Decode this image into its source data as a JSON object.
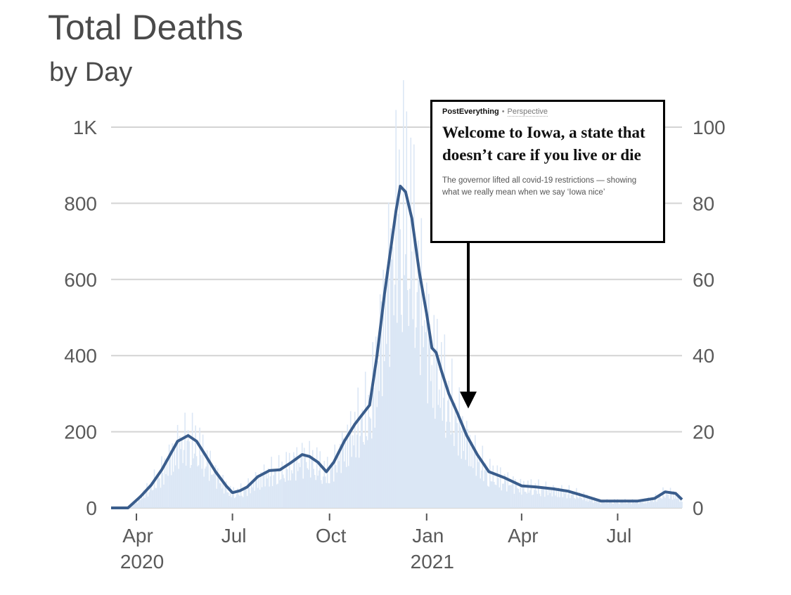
{
  "title": "Total Deaths",
  "subtitle": "by Day",
  "colors": {
    "line": "#3a5d8c",
    "bars": "#dbe7f5",
    "grid": "#d4d4d4",
    "text": "#5a5a5a"
  },
  "callout": {
    "section": "PostEverything",
    "separator": "•",
    "label": "Perspective",
    "headline": "Welcome to Iowa, a state that doesn’t care if you live or die",
    "dek": "The governor lifted all covid-19 restrictions — showing what we really mean when we say ‘Iowa nice’"
  },
  "chart_data": {
    "type": "bar",
    "title": "Total Deaths",
    "subtitle": "by Day",
    "x_domain": [
      "2020-03-08",
      "2021-08-31"
    ],
    "left_axis": {
      "ticks": [
        0,
        200,
        400,
        600,
        800,
        1000
      ],
      "tick_labels": [
        "0",
        "200",
        "400",
        "600",
        "800",
        "1K"
      ],
      "ylim": [
        0,
        1000
      ]
    },
    "right_axis": {
      "ticks": [
        0,
        20,
        40,
        60,
        80,
        100
      ],
      "tick_labels": [
        "0",
        "20",
        "40",
        "60",
        "80",
        "100"
      ],
      "ylim": [
        0,
        100
      ]
    },
    "x_ticks": [
      {
        "date": "2020-04-01",
        "label": "Apr",
        "year": "2020"
      },
      {
        "date": "2020-07-01",
        "label": "Jul",
        "year": ""
      },
      {
        "date": "2020-10-01",
        "label": "Oct",
        "year": ""
      },
      {
        "date": "2021-01-01",
        "label": "Jan",
        "year": "2021"
      },
      {
        "date": "2021-04-01",
        "label": "Apr",
        "year": ""
      },
      {
        "date": "2021-07-01",
        "label": "Jul",
        "year": ""
      }
    ],
    "grid": true,
    "series": [
      {
        "type": "line",
        "points": [
          [
            "2020-03-08",
            0
          ],
          [
            "2020-03-24",
            0
          ],
          [
            "2020-03-28",
            10
          ],
          [
            "2020-04-05",
            30
          ],
          [
            "2020-04-15",
            60
          ],
          [
            "2020-04-25",
            100
          ],
          [
            "2020-05-05",
            150
          ],
          [
            "2020-05-10",
            175
          ],
          [
            "2020-05-20",
            190
          ],
          [
            "2020-05-28",
            175
          ],
          [
            "2020-06-05",
            140
          ],
          [
            "2020-06-15",
            95
          ],
          [
            "2020-06-25",
            58
          ],
          [
            "2020-07-01",
            40
          ],
          [
            "2020-07-08",
            45
          ],
          [
            "2020-07-15",
            55
          ],
          [
            "2020-07-25",
            82
          ],
          [
            "2020-08-05",
            98
          ],
          [
            "2020-08-15",
            100
          ],
          [
            "2020-08-25",
            118
          ],
          [
            "2020-09-05",
            140
          ],
          [
            "2020-09-12",
            135
          ],
          [
            "2020-09-20",
            120
          ],
          [
            "2020-09-28",
            95
          ],
          [
            "2020-10-05",
            120
          ],
          [
            "2020-10-15",
            175
          ],
          [
            "2020-10-25",
            220
          ],
          [
            "2020-11-01",
            245
          ],
          [
            "2020-11-08",
            270
          ],
          [
            "2020-11-15",
            400
          ],
          [
            "2020-11-22",
            560
          ],
          [
            "2020-11-29",
            700
          ],
          [
            "2020-12-03",
            780
          ],
          [
            "2020-12-07",
            845
          ],
          [
            "2020-12-12",
            830
          ],
          [
            "2020-12-18",
            760
          ],
          [
            "2020-12-25",
            620
          ],
          [
            "2021-01-01",
            510
          ],
          [
            "2021-01-06",
            420
          ],
          [
            "2021-01-10",
            408
          ],
          [
            "2021-01-15",
            360
          ],
          [
            "2021-01-22",
            300
          ],
          [
            "2021-01-30",
            250
          ],
          [
            "2021-02-08",
            190
          ],
          [
            "2021-02-18",
            140
          ],
          [
            "2021-03-01",
            95
          ],
          [
            "2021-03-15",
            80
          ],
          [
            "2021-04-01",
            58
          ],
          [
            "2021-04-15",
            55
          ],
          [
            "2021-05-01",
            50
          ],
          [
            "2021-05-15",
            44
          ],
          [
            "2021-06-01",
            30
          ],
          [
            "2021-06-15",
            18
          ],
          [
            "2021-07-01",
            18
          ],
          [
            "2021-07-20",
            18
          ],
          [
            "2021-08-05",
            25
          ],
          [
            "2021-08-15",
            42
          ],
          [
            "2021-08-25",
            38
          ],
          [
            "2021-08-31",
            22
          ]
        ]
      }
    ],
    "annotations": [
      {
        "type": "arrow",
        "date": "2021-02-06",
        "value": 250
      }
    ]
  }
}
